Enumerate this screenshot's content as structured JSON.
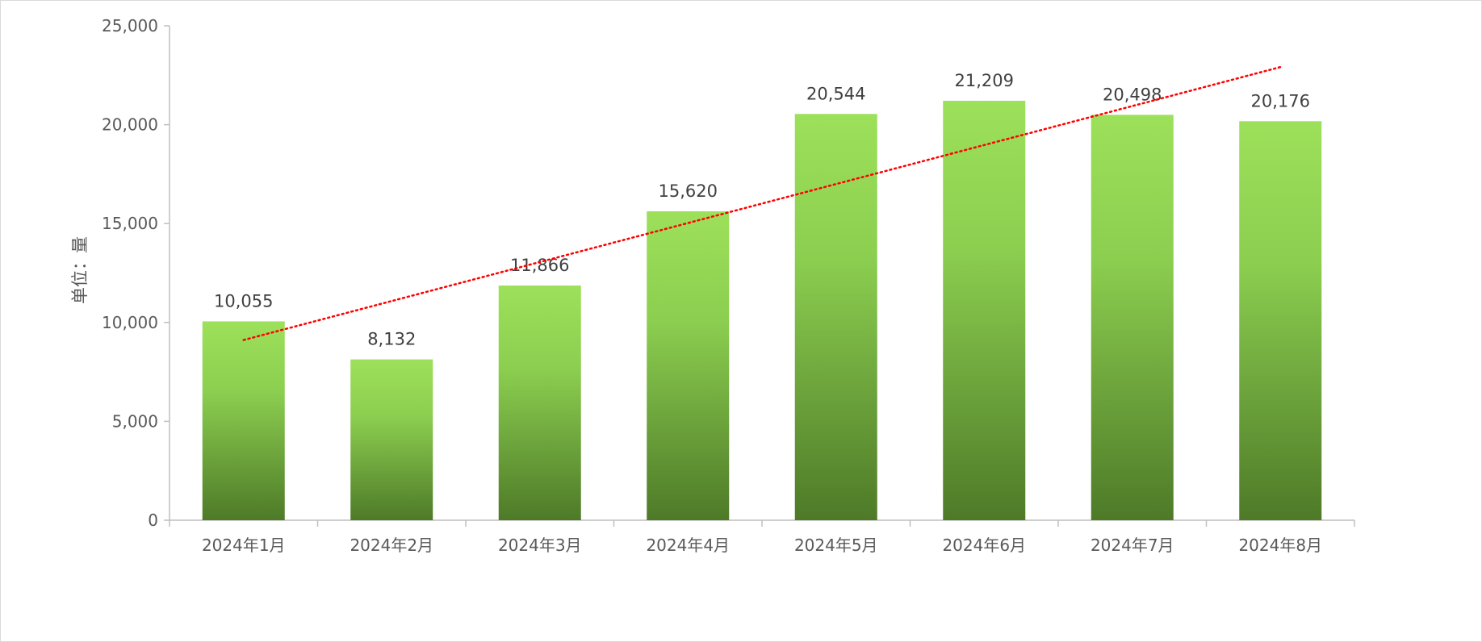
{
  "chart_data": {
    "type": "bar",
    "title": "",
    "xlabel": "",
    "ylabel": "单位：量",
    "categories": [
      "2024年1月",
      "2024年2月",
      "2024年3月",
      "2024年4月",
      "2024年5月",
      "2024年6月",
      "2024年7月",
      "2024年8月"
    ],
    "values": [
      10055,
      8132,
      11866,
      15620,
      20544,
      21209,
      20498,
      20176
    ],
    "value_labels": [
      "10,055",
      "8,132",
      "11,866",
      "15,620",
      "20,544",
      "21,209",
      "20,498",
      "20,176"
    ],
    "ylim": [
      0,
      25000
    ],
    "yticks": [
      0,
      5000,
      10000,
      15000,
      20000,
      25000
    ],
    "ytick_labels": [
      "0",
      "5,000",
      "10,000",
      "15,000",
      "20,000",
      "25,000"
    ],
    "trendline": {
      "type": "linear",
      "style": "dotted",
      "color": "#ff0000"
    },
    "bar_color_top": "#9de05a",
    "bar_color_bottom": "#4e7a28",
    "axis_color": "#bfbfbf",
    "grid": false,
    "legend": "none"
  }
}
